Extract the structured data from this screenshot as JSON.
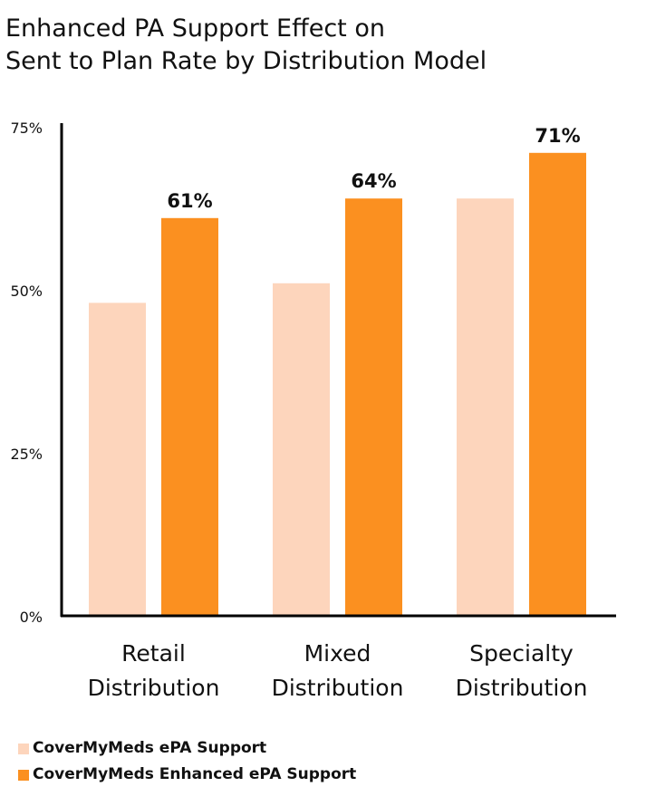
{
  "chart_data": {
    "type": "bar",
    "title": "Enhanced PA Support Effect on",
    "subtitle": "Sent to Plan Rate by Distribution Model",
    "xlabel": "",
    "ylabel": "",
    "ylim": [
      0,
      75
    ],
    "yticks": [
      0,
      25,
      50,
      75
    ],
    "ytick_labels": [
      "0%",
      "25%",
      "50%",
      "75%"
    ],
    "categories": [
      [
        "Retail",
        "Distribution"
      ],
      [
        "Mixed",
        "Distribution"
      ],
      [
        "Specialty",
        "Distribution"
      ]
    ],
    "series": [
      {
        "name": "CoverMyMeds ePA Support",
        "values": [
          48,
          51,
          64
        ],
        "color": "#FDD5BC",
        "data_labels": [
          "",
          "",
          ""
        ]
      },
      {
        "name": "CoverMyMeds Enhanced ePA Support",
        "values": [
          61,
          64,
          71
        ],
        "color": "#FB9020",
        "data_labels": [
          "61%",
          "64%",
          "71%"
        ]
      }
    ],
    "grid": false,
    "legend_position": "bottom-left"
  }
}
